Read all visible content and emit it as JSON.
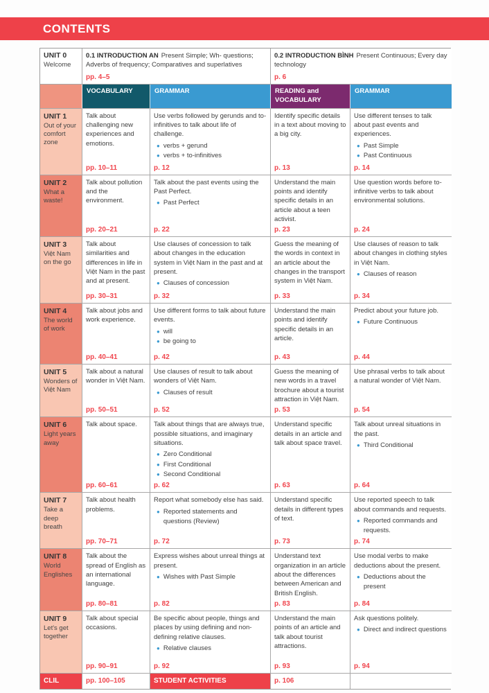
{
  "page_title": "CONTENTS",
  "colors": {
    "accent_red": "#ee4149",
    "page_number_red": "#f0454d",
    "header_teal": "#12596a",
    "header_blue": "#3a9ad1",
    "header_purple": "#7c2a6e",
    "unit_salmon_light": "#f9c6b2",
    "unit_salmon_dark": "#ec8472"
  },
  "unit0": {
    "unit": "UNIT 0",
    "subtitle": "Welcome",
    "intro1": {
      "code": "0.1 INTRODUCTION AN",
      "desc": "Present Simple; Wh- questions; Adverbs of frequency; Comparatives and superlatives",
      "pages": "pp. 4–5"
    },
    "intro2": {
      "code": "0.2 INTRODUCTION BÌNH",
      "desc": "Present Continuous; Every day technology",
      "pages": "p. 6"
    }
  },
  "column_headers": [
    "VOCABULARY",
    "GRAMMAR",
    "READING and VOCABULARY",
    "GRAMMAR"
  ],
  "units": [
    {
      "unit": "UNIT 1",
      "title": "Out of your comfort zone",
      "shade": "light",
      "cells": [
        {
          "text": "Talk about challenging new experiences and emotions.",
          "bullets": [],
          "page": "pp. 10–11"
        },
        {
          "text": "Use verbs followed by gerunds and to-infinitives to talk about life of challenge.",
          "bullets": [
            "verbs + gerund",
            "verbs + to-infinitives"
          ],
          "page": "p. 12"
        },
        {
          "text": "Identify specific details in a text about moving to a big city.",
          "bullets": [],
          "page": "p. 13"
        },
        {
          "text": "Use different tenses to talk about past events and experiences.",
          "bullets": [
            "Past Simple",
            "Past Continuous"
          ],
          "page": "p. 14"
        }
      ]
    },
    {
      "unit": "UNIT 2",
      "title": "What a waste!",
      "shade": "dark",
      "cells": [
        {
          "text": "Talk about pollution and the environment.",
          "bullets": [],
          "page": "pp. 20–21"
        },
        {
          "text": "Talk about the past events using the Past Perfect.",
          "bullets": [
            "Past Perfect"
          ],
          "page": "p. 22"
        },
        {
          "text": "Understand the main points and identify specific details in an article about a teen activist.",
          "bullets": [],
          "page": "p. 23"
        },
        {
          "text": "Use question words before to-infinitive verbs to talk about environmental solutions.",
          "bullets": [],
          "page": "p. 24"
        }
      ]
    },
    {
      "unit": "UNIT 3",
      "title": "Việt Nam on the go",
      "shade": "light",
      "cells": [
        {
          "text": "Talk about similarities and differences in life in Việt Nam in the past and at present.",
          "bullets": [],
          "page": "pp. 30–31"
        },
        {
          "text": "Use clauses of concession to talk about changes in the education system in Việt Nam in the past and at present.",
          "bullets": [
            "Clauses of concession"
          ],
          "page": "p. 32"
        },
        {
          "text": "Guess the meaning of the words in context in an article about the changes in the transport system in Việt Nam.",
          "bullets": [],
          "page": "p. 33"
        },
        {
          "text": "Use clauses of reason to talk about changes in clothing styles in Việt Nam.",
          "bullets": [
            "Clauses of reason"
          ],
          "page": "p. 34"
        }
      ]
    },
    {
      "unit": "UNIT 4",
      "title": "The world of work",
      "shade": "dark",
      "cells": [
        {
          "text": "Talk about jobs and work experience.",
          "bullets": [],
          "page": "pp. 40–41"
        },
        {
          "text": "Use different forms to talk about future events.",
          "bullets": [
            "will",
            "be going to"
          ],
          "page": "p. 42"
        },
        {
          "text": "Understand the main points and identify specific details in an article.",
          "bullets": [],
          "page": "p. 43"
        },
        {
          "text": "Predict about your future job.",
          "bullets": [
            "Future Continuous"
          ],
          "page": "p. 44"
        }
      ]
    },
    {
      "unit": "UNIT 5",
      "title": "Wonders of Việt Nam",
      "shade": "light",
      "cells": [
        {
          "text": "Talk about a natural wonder in Việt Nam.",
          "bullets": [],
          "page": "pp. 50–51"
        },
        {
          "text": "Use clauses of result to talk about wonders of Việt Nam.",
          "bullets": [
            "Clauses of result"
          ],
          "page": "p. 52"
        },
        {
          "text": "Guess the meaning of new words in a travel brochure about a tourist attraction in Việt Nam.",
          "bullets": [],
          "page": "p. 53"
        },
        {
          "text": "Use phrasal verbs to talk about a natural wonder of Việt Nam.",
          "bullets": [],
          "page": "p. 54"
        }
      ]
    },
    {
      "unit": "UNIT 6",
      "title": "Light years away",
      "shade": "dark",
      "cells": [
        {
          "text": "Talk about space.",
          "bullets": [],
          "page": "pp. 60–61"
        },
        {
          "text": "Talk about things that are always true, possible situations, and imaginary situations.",
          "bullets": [
            "Zero Conditional",
            "First Conditional",
            "Second Conditional"
          ],
          "page": "p. 62"
        },
        {
          "text": "Understand specific details in an article and talk about space travel.",
          "bullets": [],
          "page": "p. 63"
        },
        {
          "text": "Talk about unreal situations in the past.",
          "bullets": [
            "Third Conditional"
          ],
          "page": "p. 64"
        }
      ]
    },
    {
      "unit": "UNIT 7",
      "title": "Take a deep breath",
      "shade": "light",
      "cells": [
        {
          "text": "Talk about health problems.",
          "bullets": [],
          "page": "pp. 70–71"
        },
        {
          "text": "Report what somebody else has said.",
          "bullets": [
            "Reported statements and questions (Review)"
          ],
          "page": "p. 72"
        },
        {
          "text": "Understand specific details in different types of text.",
          "bullets": [],
          "page": "p. 73"
        },
        {
          "text": "Use reported speech to talk about commands and requests.",
          "bullets": [
            "Reported commands and requests."
          ],
          "page": "p. 74"
        }
      ]
    },
    {
      "unit": "UNIT 8",
      "title": "World Englishes",
      "shade": "dark",
      "cells": [
        {
          "text": "Talk about the spread of English as an international language.",
          "bullets": [],
          "page": "pp. 80–81"
        },
        {
          "text": "Express wishes about unreal things at present.",
          "bullets": [
            "Wishes with Past Simple"
          ],
          "page": "p. 82"
        },
        {
          "text": "Understand text organization in an article about the differences between American and British English.",
          "bullets": [],
          "page": "p. 83"
        },
        {
          "text": "Use modal verbs to make deductions about the present.",
          "bullets": [
            "Deductions about the present"
          ],
          "page": "p. 84"
        }
      ]
    },
    {
      "unit": "UNIT 9",
      "title": "Let's get together",
      "shade": "light",
      "cells": [
        {
          "text": "Talk about special occasions.",
          "bullets": [],
          "page": "pp. 90–91"
        },
        {
          "text": "Be specific about people, things and places by using defining and non-defining relative clauses.",
          "bullets": [
            "Relative clauses"
          ],
          "page": "p. 92"
        },
        {
          "text": "Understand the main points of an article and talk about tourist attractions.",
          "bullets": [],
          "page": "p. 93"
        },
        {
          "text": "Ask questions politely.",
          "bullets": [
            "Direct and indirect questions"
          ],
          "page": "p. 94"
        }
      ]
    }
  ],
  "footer": {
    "clil": "CLIL",
    "clil_pages": "pp. 100–105",
    "student_activities": "STUDENT ACTIVITIES",
    "sa_page": "p. 106"
  }
}
